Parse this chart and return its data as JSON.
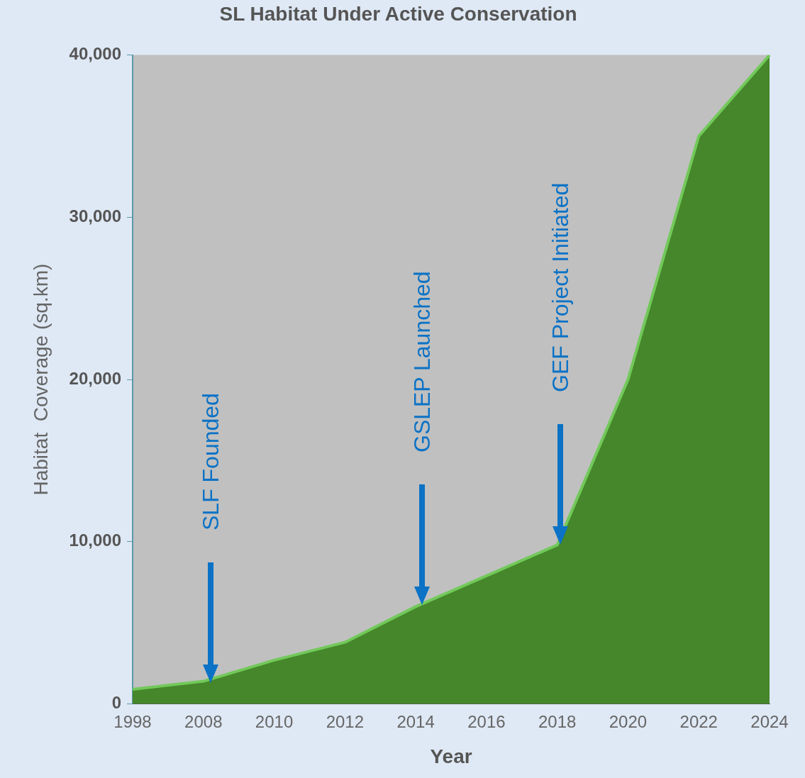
{
  "chart_data": {
    "type": "area",
    "title": "SL Habitat Under Active Conservation",
    "xlabel": "Year",
    "ylabel": "Habitat  Coverage (sq.km)",
    "categories": [
      "1998",
      "2008",
      "2010",
      "2012",
      "2014",
      "2016",
      "2018",
      "2020",
      "2022",
      "2024"
    ],
    "series": [
      {
        "color": "#45872a",
        "values": [
          900,
          1400,
          2700,
          3800,
          6000,
          7900,
          9800,
          20000,
          35000,
          40000
        ]
      }
    ],
    "ylim": [
      0,
      40000
    ],
    "yticks": [
      0,
      {
        "value": 10000,
        "label": "10,000"
      },
      {
        "value": 20000,
        "label": "20,000"
      },
      {
        "value": 30000,
        "label": "30,000"
      },
      {
        "value": 40000,
        "label": "40,000"
      }
    ],
    "grid": false,
    "legend": false,
    "annotations": [
      "SLF Founded",
      "GSLEP Launched",
      "GEF Project Initiated"
    ]
  }
}
